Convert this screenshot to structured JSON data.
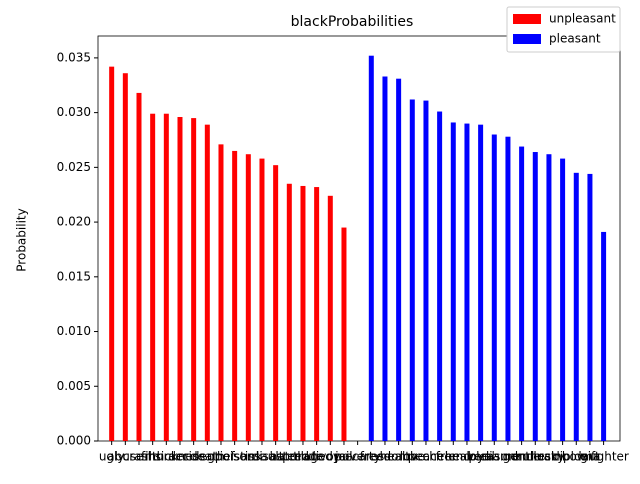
{
  "chart_data": {
    "type": "bar",
    "title": "blackProbabilities",
    "y_label": "Probability",
    "categories": [
      "ugly",
      "abuse",
      "crash",
      "filth",
      "murder",
      "sickness",
      "accident",
      "death",
      "grief",
      "poison",
      "stink",
      "assault",
      "disaster",
      "hatred",
      "pollute",
      "tragedy",
      "divorce",
      "jail",
      "poverty",
      "caress",
      "freedom",
      "health",
      "love",
      "peace",
      "cheer",
      "friend",
      "heaven",
      "loyal",
      "pleasure",
      "diamond",
      "gentle",
      "honest",
      "lucky",
      "rainbow",
      "diploma",
      "gift",
      "laughter"
    ],
    "series": [
      {
        "name": "unpleasant",
        "color": "#ff0000",
        "values": [
          0.0342,
          0.0336,
          0.0318,
          0.0299,
          0.0299,
          0.0296,
          0.0295,
          0.0289,
          0.0271,
          0.0265,
          0.0262,
          0.0258,
          0.0252,
          0.0235,
          0.0233,
          0.0232,
          0.0224,
          0.0195,
          null,
          null,
          null,
          null,
          null,
          null,
          null,
          null,
          null,
          null,
          null,
          null,
          null,
          null,
          null,
          null,
          null,
          null,
          null
        ]
      },
      {
        "name": "pleasant",
        "color": "#0000ff",
        "values": [
          null,
          null,
          null,
          null,
          null,
          null,
          null,
          null,
          null,
          null,
          null,
          null,
          null,
          null,
          null,
          null,
          null,
          null,
          null,
          0.0352,
          0.0333,
          0.0331,
          0.0312,
          0.0311,
          0.0301,
          0.0291,
          0.029,
          0.0289,
          0.028,
          0.0278,
          0.0269,
          0.0264,
          0.0262,
          0.0258,
          0.0245,
          0.0244,
          0.0191
        ]
      }
    ],
    "ylim": [
      0,
      0.037
    ],
    "yticks": [
      {
        "value": 0,
        "label": "0.000"
      },
      {
        "value": 0.005,
        "label": "0.005"
      },
      {
        "value": 0.01,
        "label": "0.010"
      },
      {
        "value": 0.015,
        "label": "0.015"
      },
      {
        "value": 0.02,
        "label": "0.020"
      },
      {
        "value": 0.025,
        "label": "0.025"
      },
      {
        "value": 0.03,
        "label": "0.030"
      },
      {
        "value": 0.035,
        "label": "0.035"
      }
    ],
    "legend": "upper right"
  }
}
